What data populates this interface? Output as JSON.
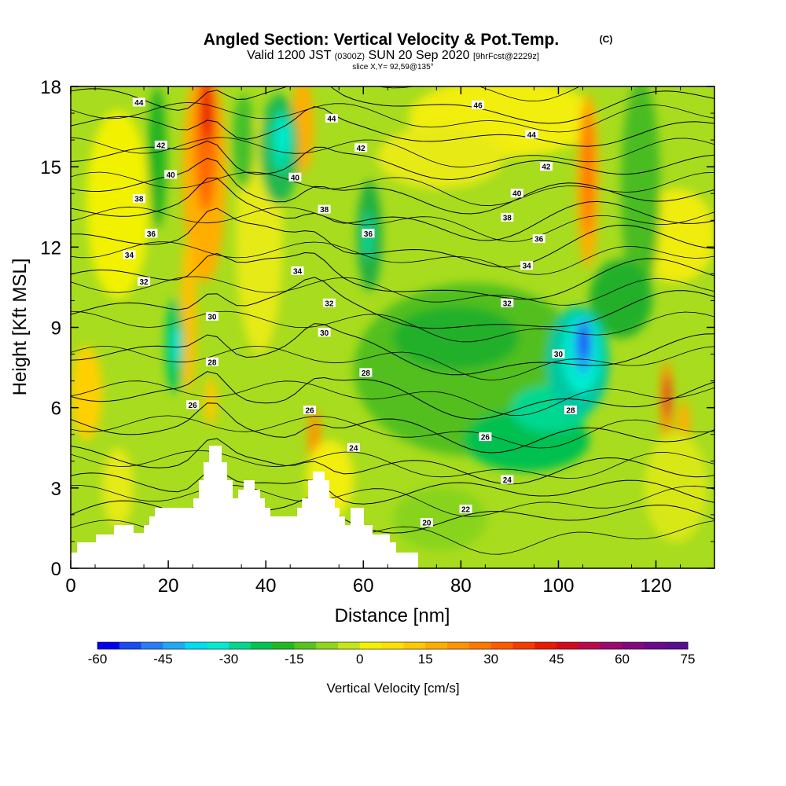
{
  "header": {
    "title": "Angled Section: Vertical Velocity & Pot.Temp.",
    "copyright": "(C)",
    "valid_prefix": "Valid 1200 JST",
    "valid_z": "(0300Z)",
    "valid_date": "SUN 20 Sep 2020",
    "forecast": "[9hrFcst@2229z]",
    "slice": "slice X,Y= 92,59@135°"
  },
  "chart_data": {
    "type": "heatmap",
    "title": "Angled Section: Vertical Velocity & Pot.Temp.",
    "xlabel": "Distance [nm]",
    "ylabel": "Height [Kft MSL]",
    "xlim": [
      0,
      132
    ],
    "ylim": [
      0,
      18
    ],
    "x_ticks": [
      "0",
      "20",
      "40",
      "60",
      "80",
      "100",
      "120"
    ],
    "y_ticks": [
      "0",
      "3",
      "6",
      "9",
      "12",
      "15",
      "18"
    ],
    "colorbar": {
      "label": "Vertical Velocity [cm/s]",
      "tick_labels": [
        "-60",
        "-45",
        "-30",
        "-15",
        "0",
        "15",
        "30",
        "45",
        "60",
        "75"
      ],
      "min": -60,
      "max": 75,
      "step": 5,
      "colors": [
        "#0000f0",
        "#1a4af5",
        "#2a7cf5",
        "#1fa9f5",
        "#00dcf0",
        "#00ecd0",
        "#00d890",
        "#00c450",
        "#22b822",
        "#56c41e",
        "#8fd61a",
        "#c4e614",
        "#f2f200",
        "#ffe000",
        "#ffc800",
        "#ffae00",
        "#ff9400",
        "#ff7800",
        "#ff5a00",
        "#f53c00",
        "#e81a00",
        "#d40a1e",
        "#b80a4a",
        "#9a0a6e",
        "#82087e",
        "#6a0a8a",
        "#580e90"
      ]
    },
    "contours": {
      "variable": "Potential Temperature",
      "levels": [
        20,
        22,
        24,
        26,
        28,
        30,
        32,
        34,
        36,
        38,
        40,
        42,
        44,
        46
      ],
      "labels": [
        {
          "text": "44",
          "x": 14,
          "y": 17.4
        },
        {
          "text": "42",
          "x": 18.5,
          "y": 15.8
        },
        {
          "text": "40",
          "x": 20.5,
          "y": 14.7
        },
        {
          "text": "38",
          "x": 14,
          "y": 13.8
        },
        {
          "text": "36",
          "x": 16.5,
          "y": 12.5
        },
        {
          "text": "34",
          "x": 12,
          "y": 11.7
        },
        {
          "text": "32",
          "x": 15,
          "y": 10.7
        },
        {
          "text": "30",
          "x": 29,
          "y": 9.4
        },
        {
          "text": "28",
          "x": 29,
          "y": 7.7
        },
        {
          "text": "26",
          "x": 25,
          "y": 6.1
        },
        {
          "text": "44",
          "x": 53.5,
          "y": 16.8
        },
        {
          "text": "42",
          "x": 59.5,
          "y": 15.7
        },
        {
          "text": "40",
          "x": 46,
          "y": 14.6
        },
        {
          "text": "38",
          "x": 52,
          "y": 13.4
        },
        {
          "text": "36",
          "x": 61,
          "y": 12.5
        },
        {
          "text": "34",
          "x": 46.5,
          "y": 11.1
        },
        {
          "text": "32",
          "x": 53,
          "y": 9.9
        },
        {
          "text": "30",
          "x": 52,
          "y": 8.8
        },
        {
          "text": "28",
          "x": 60.5,
          "y": 7.3
        },
        {
          "text": "26",
          "x": 49,
          "y": 5.9
        },
        {
          "text": "24",
          "x": 58,
          "y": 4.5
        },
        {
          "text": "46",
          "x": 83.5,
          "y": 17.3
        },
        {
          "text": "44",
          "x": 94.5,
          "y": 16.2
        },
        {
          "text": "42",
          "x": 97.5,
          "y": 15.0
        },
        {
          "text": "40",
          "x": 91.5,
          "y": 14.0
        },
        {
          "text": "38",
          "x": 89.5,
          "y": 13.1
        },
        {
          "text": "36",
          "x": 96,
          "y": 12.3
        },
        {
          "text": "34",
          "x": 93.5,
          "y": 11.3
        },
        {
          "text": "32",
          "x": 89.5,
          "y": 9.9
        },
        {
          "text": "30",
          "x": 100,
          "y": 8.0
        },
        {
          "text": "28",
          "x": 102.5,
          "y": 5.9
        },
        {
          "text": "26",
          "x": 85,
          "y": 4.9
        },
        {
          "text": "24",
          "x": 89.5,
          "y": 3.3
        },
        {
          "text": "22",
          "x": 81,
          "y": 2.2
        },
        {
          "text": "20",
          "x": 73,
          "y": 1.7
        }
      ]
    },
    "grid": false,
    "legend": "colorbar-bottom"
  }
}
